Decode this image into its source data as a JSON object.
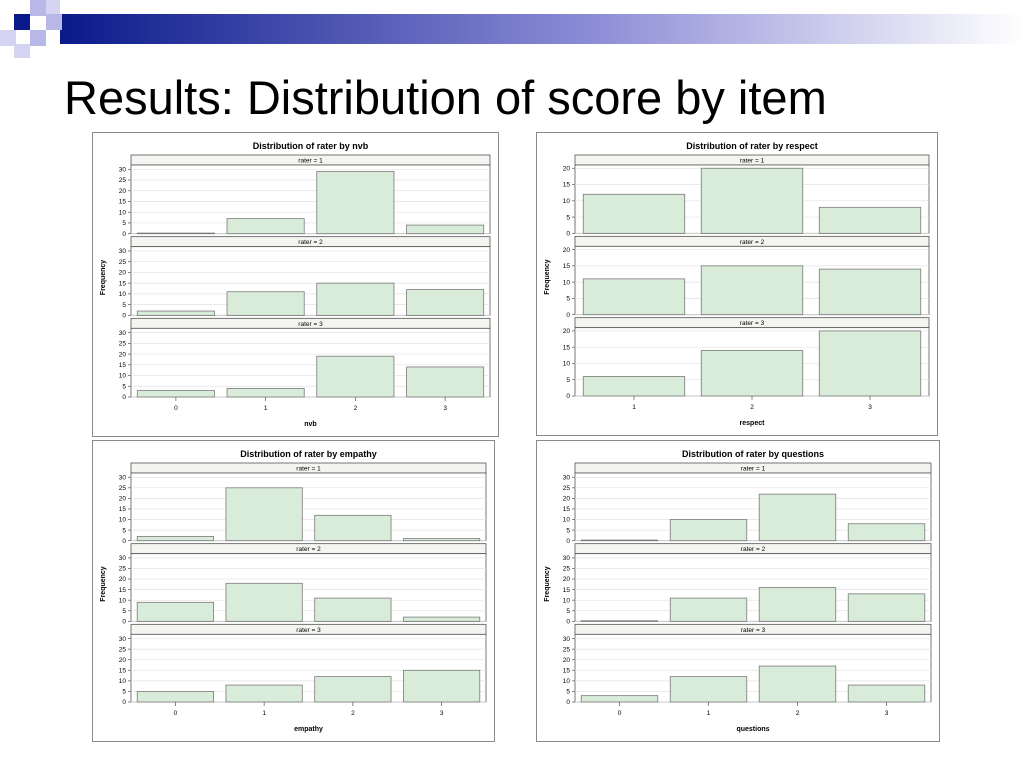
{
  "slide": {
    "title": "Results: Distribution of score by item"
  },
  "colors": {
    "bar_fill": "#d9ecd9",
    "bar_stroke": "#7a7a7a",
    "strip_fill": "#f4f4f0",
    "accent_dark": "#0a1a8a",
    "accent_light": "#9a9adf"
  },
  "chart_data": [
    {
      "type": "bar",
      "title": "Distribution of rater by nvb",
      "xlabel": "nvb",
      "ylabel": "Frequency",
      "categories": [
        "0",
        "1",
        "2",
        "3"
      ],
      "ylim": [
        0,
        32
      ],
      "yticks": [
        0,
        5,
        10,
        15,
        20,
        25,
        30
      ],
      "panels": [
        {
          "label": "rater = 1",
          "values": [
            0,
            7,
            29,
            4
          ]
        },
        {
          "label": "rater = 2",
          "values": [
            2,
            11,
            15,
            12
          ]
        },
        {
          "label": "rater = 3",
          "values": [
            3,
            4,
            19,
            14
          ]
        }
      ]
    },
    {
      "type": "bar",
      "title": "Distribution of rater by respect",
      "xlabel": "respect",
      "ylabel": "Frequency",
      "categories": [
        "1",
        "2",
        "3"
      ],
      "ylim": [
        0,
        21
      ],
      "yticks": [
        0,
        5,
        10,
        15,
        20
      ],
      "panels": [
        {
          "label": "rater = 1",
          "values": [
            12,
            20,
            8
          ]
        },
        {
          "label": "rater = 2",
          "values": [
            11,
            15,
            14
          ]
        },
        {
          "label": "rater = 3",
          "values": [
            6,
            14,
            20
          ]
        }
      ]
    },
    {
      "type": "bar",
      "title": "Distribution of rater by empathy",
      "xlabel": "empathy",
      "ylabel": "Frequency",
      "categories": [
        "0",
        "1",
        "2",
        "3"
      ],
      "ylim": [
        0,
        32
      ],
      "yticks": [
        0,
        5,
        10,
        15,
        20,
        25,
        30
      ],
      "panels": [
        {
          "label": "rater = 1",
          "values": [
            2,
            25,
            12,
            1
          ]
        },
        {
          "label": "rater = 2",
          "values": [
            9,
            18,
            11,
            2
          ]
        },
        {
          "label": "rater = 3",
          "values": [
            5,
            8,
            12,
            15
          ]
        }
      ]
    },
    {
      "type": "bar",
      "title": "Distribution of rater by questions",
      "xlabel": "questions",
      "ylabel": "Frequency",
      "categories": [
        "0",
        "1",
        "2",
        "3"
      ],
      "ylim": [
        0,
        32
      ],
      "yticks": [
        0,
        5,
        10,
        15,
        20,
        25,
        30
      ],
      "panels": [
        {
          "label": "rater = 1",
          "values": [
            0,
            10,
            22,
            8
          ]
        },
        {
          "label": "rater = 2",
          "values": [
            0,
            11,
            16,
            13
          ]
        },
        {
          "label": "rater = 3",
          "values": [
            3,
            12,
            17,
            8
          ]
        }
      ]
    }
  ]
}
